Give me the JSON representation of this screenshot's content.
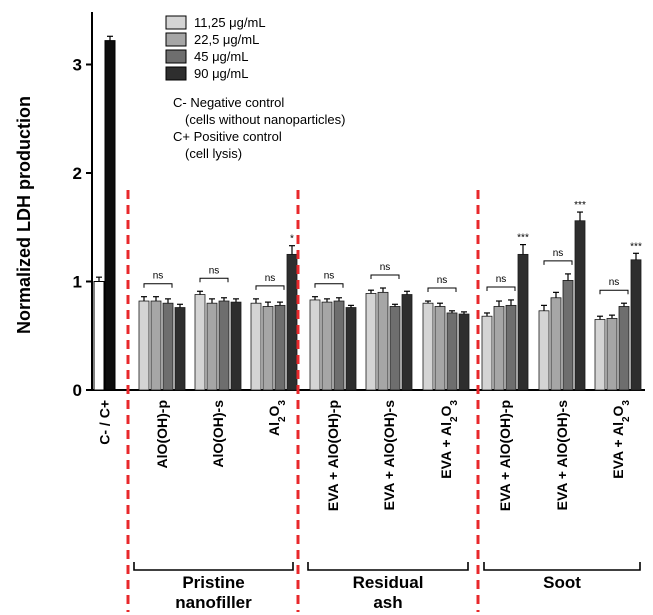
{
  "colors": {
    "series": [
      "#d4d4d4",
      "#a6a6a6",
      "#6e6e6e",
      "#2e2e2e"
    ],
    "controls": [
      "#ffffff",
      "#0d0d0d"
    ],
    "separator": "#e8282b",
    "error_bar": "#000000"
  },
  "chart_data": {
    "type": "bar",
    "title": "",
    "xlabel": "",
    "ylabel": "Normalized LDH production",
    "ylim": [
      0,
      3.5
    ],
    "yticks": [
      "0",
      "1",
      "2",
      "3"
    ],
    "grid": false,
    "legend_position": "top-left",
    "series": [
      {
        "name": "11,25 μg/mL"
      },
      {
        "name": "22,5 μg/mL"
      },
      {
        "name": "45 μg/mL"
      },
      {
        "name": "90 μg/mL"
      }
    ],
    "legend_notes": [
      "C- Negative control",
      "(cells without nanoparticles)",
      "C+ Positive control",
      "(cell lysis)"
    ],
    "controls": {
      "label": "C- / C+",
      "values": [
        1.0,
        3.22
      ],
      "errors": [
        0.04,
        0.04
      ]
    },
    "categories": [
      {
        "label": "AlO(OH)-p",
        "values": [
          0.82,
          0.82,
          0.8,
          0.76
        ],
        "errors": [
          0.04,
          0.04,
          0.04,
          0.03
        ],
        "sig": "ns",
        "sig_star": ""
      },
      {
        "label": "AlO(OH)-s",
        "values": [
          0.88,
          0.8,
          0.82,
          0.81
        ],
        "errors": [
          0.03,
          0.04,
          0.03,
          0.03
        ],
        "sig": "ns",
        "sig_star": ""
      },
      {
        "label": "Al2O3",
        "values": [
          0.8,
          0.77,
          0.78,
          1.25
        ],
        "errors": [
          0.04,
          0.04,
          0.03,
          0.08
        ],
        "sig": "ns",
        "sig_star": "*"
      },
      {
        "label": "EVA + AlO(OH)-p",
        "values": [
          0.83,
          0.81,
          0.82,
          0.76
        ],
        "errors": [
          0.03,
          0.03,
          0.03,
          0.02
        ],
        "sig": "ns",
        "sig_star": ""
      },
      {
        "label": "EVA + AlO(OH)-s",
        "values": [
          0.89,
          0.9,
          0.77,
          0.88
        ],
        "errors": [
          0.03,
          0.04,
          0.02,
          0.03
        ],
        "sig": "ns",
        "sig_star": ""
      },
      {
        "label": "EVA + Al2O3",
        "values": [
          0.8,
          0.77,
          0.71,
          0.7
        ],
        "errors": [
          0.02,
          0.03,
          0.02,
          0.02
        ],
        "sig": "ns",
        "sig_star": ""
      },
      {
        "label": "EVA + AlO(OH)-p",
        "values": [
          0.68,
          0.77,
          0.78,
          1.25
        ],
        "errors": [
          0.03,
          0.05,
          0.05,
          0.09
        ],
        "sig": "ns",
        "sig_star": "***"
      },
      {
        "label": "EVA + AlO(OH)-s",
        "values": [
          0.73,
          0.85,
          1.01,
          1.56
        ],
        "errors": [
          0.05,
          0.05,
          0.06,
          0.08
        ],
        "sig": "ns",
        "sig_star": "***"
      },
      {
        "label": "EVA + Al2O3",
        "values": [
          0.65,
          0.66,
          0.77,
          1.2
        ],
        "errors": [
          0.03,
          0.03,
          0.03,
          0.06
        ],
        "sig": "ns",
        "sig_star": "***"
      }
    ],
    "groups": [
      {
        "label_lines": [
          "Pristine",
          "nanofiller"
        ]
      },
      {
        "label_lines": [
          "Residual",
          "ash"
        ]
      },
      {
        "label_lines": [
          "Soot"
        ]
      }
    ]
  }
}
